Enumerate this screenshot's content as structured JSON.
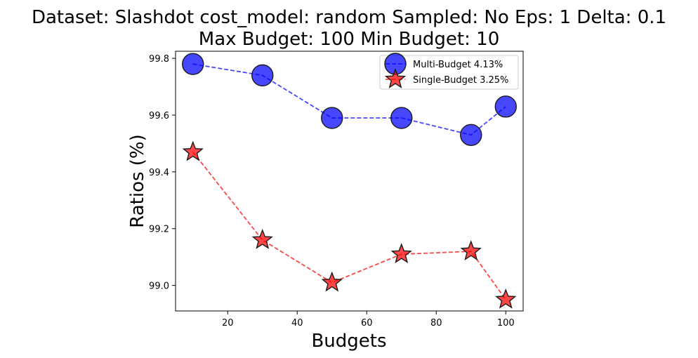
{
  "chart_data": {
    "type": "line",
    "title_line1": "Dataset: Slashdot cost_model: random Sampled: No Eps: 1 Delta: 0.1",
    "title_line2": "Max Budget: 100 Min Budget: 10",
    "xlabel": "Budgets",
    "ylabel": "Ratios (%)",
    "x": [
      10,
      30,
      50,
      70,
      90,
      100
    ],
    "xlim": [
      5,
      105
    ],
    "ylim": [
      98.91,
      99.825
    ],
    "xticks": [
      20,
      40,
      60,
      80,
      100
    ],
    "yticks": [
      99.0,
      99.2,
      99.4,
      99.6,
      99.8
    ],
    "xtick_labels": [
      "20",
      "40",
      "60",
      "80",
      "100"
    ],
    "ytick_labels": [
      "99.0",
      "99.2",
      "99.4",
      "99.6",
      "99.8"
    ],
    "legend_position": "top-right",
    "grid": false,
    "series": [
      {
        "name": "Multi-Budget 4.13%",
        "marker": "circle",
        "color": "#0000ff",
        "values": [
          99.78,
          99.74,
          99.59,
          99.59,
          99.53,
          99.63
        ]
      },
      {
        "name": "Single-Budget 3.25%",
        "marker": "star",
        "color": "#ff0000",
        "values": [
          99.47,
          99.16,
          99.01,
          99.11,
          99.12,
          98.95
        ]
      }
    ]
  }
}
